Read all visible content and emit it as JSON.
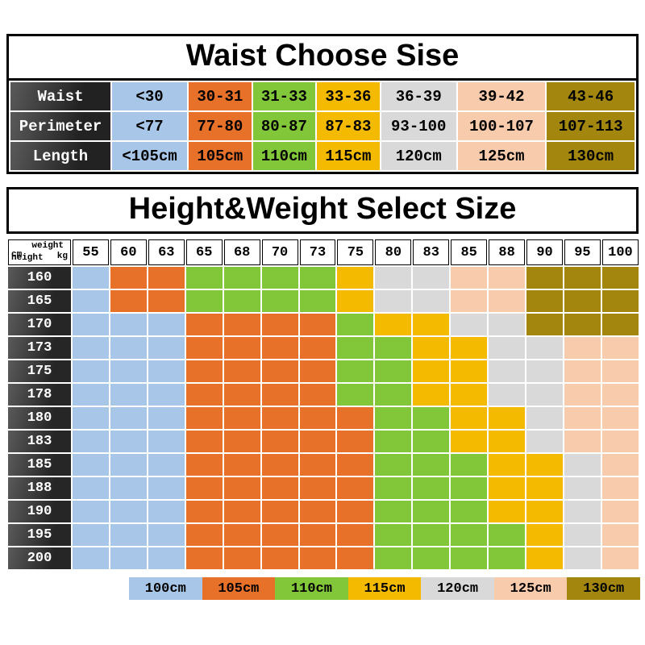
{
  "colors": {
    "size_100": "#a8c6e8",
    "size_105": "#e8712a",
    "size_110": "#82c63a",
    "size_115": "#f3ba00",
    "size_120": "#d9d9d9",
    "size_125": "#f7cbab",
    "size_130": "#a2860e",
    "label_dark": "#2b2b2b",
    "background": "#ffffff",
    "border": "#000000"
  },
  "chart_data": [
    {
      "type": "table",
      "title": "Waist Choose Sise",
      "row_headers": [
        "Waist",
        "Perimeter",
        "Length"
      ],
      "rows": [
        [
          "<30",
          "30-31",
          "31-33",
          "33-36",
          "36-39",
          "39-42",
          "43-46"
        ],
        [
          "<77",
          "77-80",
          "80-87",
          "87-83",
          "93-100",
          "100-107",
          "107-113"
        ],
        [
          "<105cm",
          "105cm",
          "110cm",
          "115cm",
          "120cm",
          "125cm",
          "130cm"
        ]
      ],
      "column_sizes": [
        "100",
        "105",
        "110",
        "115",
        "120",
        "125",
        "130"
      ]
    },
    {
      "type": "heatmap",
      "title": "Height&Weight Select Size",
      "corner": {
        "x_word": "weight",
        "x_unit": "kg",
        "y_unit": "cm",
        "y_word": "height"
      },
      "x_axis": {
        "label": "weight kg",
        "ticks": [
          "55",
          "60",
          "63",
          "65",
          "68",
          "70",
          "73",
          "75",
          "80",
          "83",
          "85",
          "88",
          "90",
          "95",
          "100"
        ]
      },
      "y_axis": {
        "label": "cm height",
        "ticks": [
          "160",
          "165",
          "170",
          "173",
          "175",
          "178",
          "180",
          "183",
          "185",
          "188",
          "190",
          "195",
          "200"
        ]
      },
      "cell_unit": "cm",
      "cells": [
        [
          "100",
          "105",
          "105",
          "110",
          "110",
          "110",
          "110",
          "115",
          "120",
          "120",
          "125",
          "125",
          "130",
          "130",
          "130"
        ],
        [
          "100",
          "105",
          "105",
          "110",
          "110",
          "110",
          "110",
          "115",
          "120",
          "120",
          "125",
          "125",
          "130",
          "130",
          "130"
        ],
        [
          "100",
          "100",
          "100",
          "105",
          "105",
          "105",
          "105",
          "110",
          "115",
          "115",
          "120",
          "120",
          "130",
          "130",
          "130"
        ],
        [
          "100",
          "100",
          "100",
          "105",
          "105",
          "105",
          "105",
          "110",
          "110",
          "115",
          "115",
          "120",
          "120",
          "125",
          "125"
        ],
        [
          "100",
          "100",
          "100",
          "105",
          "105",
          "105",
          "105",
          "110",
          "110",
          "115",
          "115",
          "120",
          "120",
          "125",
          "125"
        ],
        [
          "100",
          "100",
          "100",
          "105",
          "105",
          "105",
          "105",
          "110",
          "110",
          "115",
          "115",
          "120",
          "120",
          "125",
          "125"
        ],
        [
          "100",
          "100",
          "100",
          "105",
          "105",
          "105",
          "105",
          "105",
          "110",
          "110",
          "115",
          "115",
          "120",
          "125",
          "125"
        ],
        [
          "100",
          "100",
          "100",
          "105",
          "105",
          "105",
          "105",
          "105",
          "110",
          "110",
          "115",
          "115",
          "120",
          "125",
          "125"
        ],
        [
          "100",
          "100",
          "100",
          "105",
          "105",
          "105",
          "105",
          "105",
          "110",
          "110",
          "110",
          "115",
          "115",
          "120",
          "125"
        ],
        [
          "100",
          "100",
          "100",
          "105",
          "105",
          "105",
          "105",
          "105",
          "110",
          "110",
          "110",
          "115",
          "115",
          "120",
          "125"
        ],
        [
          "100",
          "100",
          "100",
          "105",
          "105",
          "105",
          "105",
          "105",
          "110",
          "110",
          "110",
          "115",
          "115",
          "120",
          "125"
        ],
        [
          "100",
          "100",
          "100",
          "105",
          "105",
          "105",
          "105",
          "105",
          "110",
          "110",
          "110",
          "110",
          "115",
          "120",
          "125"
        ],
        [
          "100",
          "100",
          "100",
          "105",
          "105",
          "105",
          "105",
          "105",
          "110",
          "110",
          "110",
          "110",
          "115",
          "120",
          "125"
        ]
      ],
      "legend": [
        {
          "label": "100cm",
          "size": "100"
        },
        {
          "label": "105cm",
          "size": "105"
        },
        {
          "label": "110cm",
          "size": "110"
        },
        {
          "label": "115cm",
          "size": "115"
        },
        {
          "label": "120cm",
          "size": "120"
        },
        {
          "label": "125cm",
          "size": "125"
        },
        {
          "label": "130cm",
          "size": "130"
        }
      ],
      "legend_position": "bottom"
    }
  ]
}
